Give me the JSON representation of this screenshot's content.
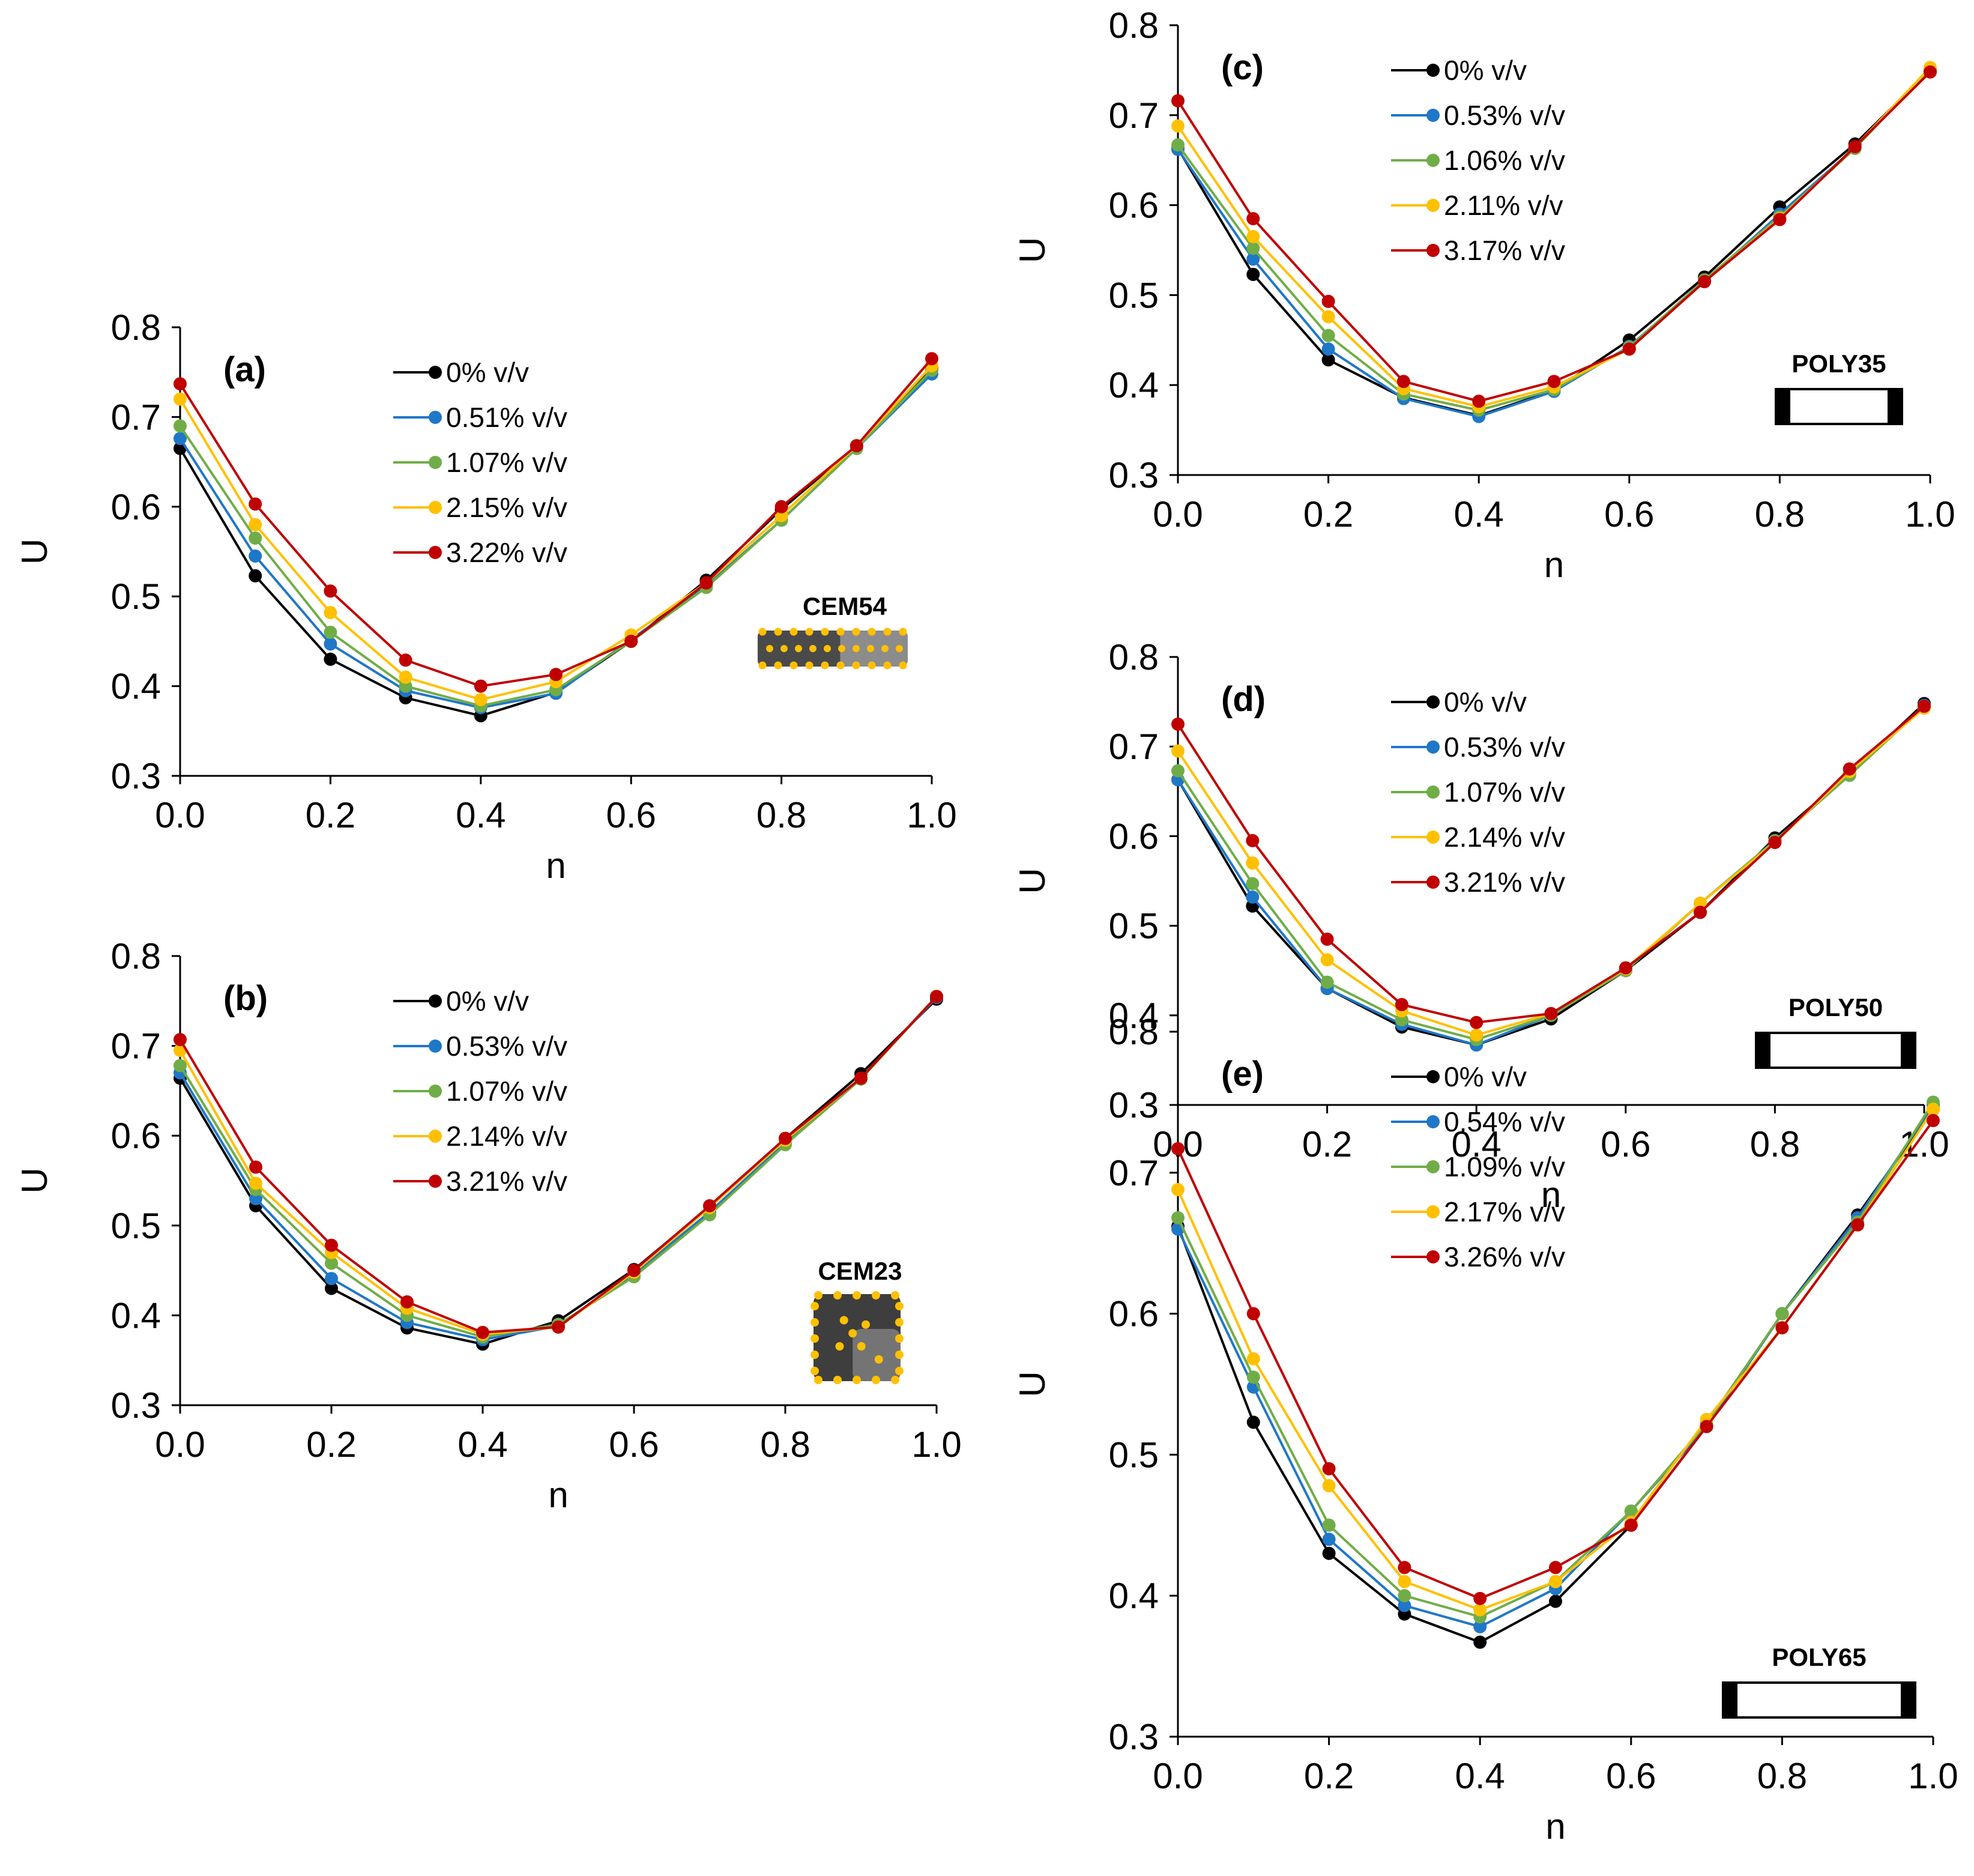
{
  "figure": {
    "colors": {
      "s0": "#000000",
      "s1": "#1F77C8",
      "s2": "#70AD47",
      "s3": "#FFC000",
      "s4": "#C00000",
      "particle": "#FFC000"
    }
  },
  "chart_data": [
    {
      "id": "a",
      "type": "line",
      "panel_tag": "(a)",
      "inset_label": "CEM54",
      "inset_icon": "cement-prism-icon",
      "xlabel": "n",
      "ylabel": "U",
      "xlim": [
        0,
        1
      ],
      "ylim": [
        0.3,
        0.8
      ],
      "xticks": [
        "0.0",
        "0.2",
        "0.4",
        "0.6",
        "0.8",
        "1.0"
      ],
      "yticks": [
        "0.3",
        "0.4",
        "0.5",
        "0.6",
        "0.7",
        "0.8"
      ],
      "series": [
        {
          "name": "0% v/v",
          "color": "#000000",
          "x": [
            0,
            0.1,
            0.2,
            0.3,
            0.4,
            0.5,
            0.6,
            0.7,
            0.8,
            0.9,
            1.0
          ],
          "y": [
            0.665,
            0.523,
            0.43,
            0.387,
            0.367,
            0.393,
            0.45,
            0.518,
            0.597,
            0.668,
            0.755
          ]
        },
        {
          "name": "0.51% v/v",
          "color": "#1F77C8",
          "x": [
            0,
            0.1,
            0.2,
            0.3,
            0.4,
            0.5,
            0.6,
            0.7,
            0.8,
            0.9,
            1.0
          ],
          "y": [
            0.676,
            0.545,
            0.447,
            0.395,
            0.376,
            0.392,
            0.452,
            0.512,
            0.585,
            0.665,
            0.748
          ]
        },
        {
          "name": "1.07% v/v",
          "color": "#70AD47",
          "x": [
            0,
            0.1,
            0.2,
            0.3,
            0.4,
            0.5,
            0.6,
            0.7,
            0.8,
            0.9,
            1.0
          ],
          "y": [
            0.69,
            0.565,
            0.46,
            0.4,
            0.378,
            0.396,
            0.45,
            0.51,
            0.585,
            0.665,
            0.752
          ]
        },
        {
          "name": "2.15% v/v",
          "color": "#FFC000",
          "x": [
            0,
            0.1,
            0.2,
            0.3,
            0.4,
            0.5,
            0.6,
            0.7,
            0.8,
            0.9,
            1.0
          ],
          "y": [
            0.72,
            0.58,
            0.482,
            0.41,
            0.385,
            0.405,
            0.457,
            0.515,
            0.59,
            0.668,
            0.757
          ]
        },
        {
          "name": "3.22% v/v",
          "color": "#C00000",
          "x": [
            0,
            0.1,
            0.2,
            0.3,
            0.4,
            0.5,
            0.6,
            0.7,
            0.8,
            0.9,
            1.0
          ],
          "y": [
            0.737,
            0.603,
            0.506,
            0.429,
            0.4,
            0.413,
            0.45,
            0.515,
            0.6,
            0.668,
            0.765
          ]
        }
      ]
    },
    {
      "id": "b",
      "type": "line",
      "panel_tag": "(b)",
      "inset_label": "CEM23",
      "inset_icon": "cement-cube-icon",
      "xlabel": "n",
      "ylabel": "U",
      "xlim": [
        0,
        1
      ],
      "ylim": [
        0.3,
        0.8
      ],
      "xticks": [
        "0.0",
        "0.2",
        "0.4",
        "0.6",
        "0.8",
        "1.0"
      ],
      "yticks": [
        "0.3",
        "0.4",
        "0.5",
        "0.6",
        "0.7",
        "0.8"
      ],
      "series": [
        {
          "name": "0% v/v",
          "color": "#000000",
          "x": [
            0,
            0.1,
            0.2,
            0.3,
            0.4,
            0.5,
            0.6,
            0.7,
            0.8,
            0.9,
            1.0
          ],
          "y": [
            0.664,
            0.522,
            0.43,
            0.386,
            0.368,
            0.394,
            0.451,
            0.521,
            0.597,
            0.669,
            0.752
          ]
        },
        {
          "name": "0.53% v/v",
          "color": "#1F77C8",
          "x": [
            0,
            0.1,
            0.2,
            0.3,
            0.4,
            0.5,
            0.6,
            0.7,
            0.8,
            0.9,
            1.0
          ],
          "y": [
            0.67,
            0.53,
            0.441,
            0.392,
            0.373,
            0.388,
            0.446,
            0.515,
            0.592,
            0.664,
            0.754
          ]
        },
        {
          "name": "1.07% v/v",
          "color": "#70AD47",
          "x": [
            0,
            0.1,
            0.2,
            0.3,
            0.4,
            0.5,
            0.6,
            0.7,
            0.8,
            0.9,
            1.0
          ],
          "y": [
            0.678,
            0.54,
            0.458,
            0.4,
            0.376,
            0.39,
            0.443,
            0.512,
            0.59,
            0.663,
            0.755
          ]
        },
        {
          "name": "2.14% v/v",
          "color": "#FFC000",
          "x": [
            0,
            0.1,
            0.2,
            0.3,
            0.4,
            0.5,
            0.6,
            0.7,
            0.8,
            0.9,
            1.0
          ],
          "y": [
            0.695,
            0.547,
            0.47,
            0.408,
            0.379,
            0.387,
            0.448,
            0.52,
            0.595,
            0.664,
            0.755
          ]
        },
        {
          "name": "3.21% v/v",
          "color": "#C00000",
          "x": [
            0,
            0.1,
            0.2,
            0.3,
            0.4,
            0.5,
            0.6,
            0.7,
            0.8,
            0.9,
            1.0
          ],
          "y": [
            0.707,
            0.565,
            0.478,
            0.415,
            0.381,
            0.387,
            0.45,
            0.522,
            0.597,
            0.664,
            0.755
          ]
        }
      ]
    },
    {
      "id": "c",
      "type": "line",
      "panel_tag": "(c)",
      "inset_label": "POLY35",
      "inset_icon": "polymer-tube-icon",
      "xlabel": "n",
      "ylabel": "U",
      "xlim": [
        0,
        1
      ],
      "ylim": [
        0.3,
        0.8
      ],
      "xticks": [
        "0.0",
        "0.2",
        "0.4",
        "0.6",
        "0.8",
        "1.0"
      ],
      "yticks": [
        "0.3",
        "0.4",
        "0.5",
        "0.6",
        "0.7",
        "0.8"
      ],
      "series": [
        {
          "name": "0% v/v",
          "color": "#000000",
          "x": [
            0,
            0.1,
            0.2,
            0.3,
            0.4,
            0.5,
            0.6,
            0.7,
            0.8,
            0.9,
            1.0
          ],
          "y": [
            0.663,
            0.523,
            0.428,
            0.386,
            0.366,
            0.394,
            0.45,
            0.52,
            0.598,
            0.668,
            0.75
          ]
        },
        {
          "name": "0.53% v/v",
          "color": "#1F77C8",
          "x": [
            0,
            0.1,
            0.2,
            0.3,
            0.4,
            0.5,
            0.6,
            0.7,
            0.8,
            0.9,
            1.0
          ],
          "y": [
            0.662,
            0.54,
            0.44,
            0.385,
            0.365,
            0.393,
            0.443,
            0.515,
            0.59,
            0.664,
            0.75
          ]
        },
        {
          "name": "1.06% v/v",
          "color": "#70AD47",
          "x": [
            0,
            0.1,
            0.2,
            0.3,
            0.4,
            0.5,
            0.6,
            0.7,
            0.8,
            0.9,
            1.0
          ],
          "y": [
            0.667,
            0.552,
            0.455,
            0.39,
            0.372,
            0.395,
            0.442,
            0.517,
            0.587,
            0.663,
            0.752
          ]
        },
        {
          "name": "2.11% v/v",
          "color": "#FFC000",
          "x": [
            0,
            0.1,
            0.2,
            0.3,
            0.4,
            0.5,
            0.6,
            0.7,
            0.8,
            0.9,
            1.0
          ],
          "y": [
            0.688,
            0.565,
            0.476,
            0.396,
            0.376,
            0.398,
            0.44,
            0.515,
            0.585,
            0.665,
            0.753
          ]
        },
        {
          "name": "3.17% v/v",
          "color": "#C00000",
          "x": [
            0,
            0.1,
            0.2,
            0.3,
            0.4,
            0.5,
            0.6,
            0.7,
            0.8,
            0.9,
            1.0
          ],
          "y": [
            0.716,
            0.585,
            0.493,
            0.404,
            0.382,
            0.404,
            0.44,
            0.515,
            0.584,
            0.665,
            0.748
          ]
        }
      ]
    },
    {
      "id": "d",
      "type": "line",
      "panel_tag": "(d)",
      "inset_label": "POLY50",
      "inset_icon": "polymer-tube-icon",
      "xlabel": "n",
      "ylabel": "U",
      "xlim": [
        0,
        1
      ],
      "ylim": [
        0.3,
        0.8
      ],
      "xticks": [
        "0.0",
        "0.2",
        "0.4",
        "0.6",
        "0.8",
        "1.0"
      ],
      "yticks": [
        "0.3",
        "0.4",
        "0.5",
        "0.6",
        "0.7",
        "0.8"
      ],
      "series": [
        {
          "name": "0% v/v",
          "color": "#000000",
          "x": [
            0,
            0.1,
            0.2,
            0.3,
            0.4,
            0.5,
            0.6,
            0.7,
            0.8,
            0.9,
            1.0
          ],
          "y": [
            0.663,
            0.522,
            0.43,
            0.387,
            0.367,
            0.396,
            0.45,
            0.515,
            0.598,
            0.67,
            0.748
          ]
        },
        {
          "name": "0.53% v/v",
          "color": "#1F77C8",
          "x": [
            0,
            0.1,
            0.2,
            0.3,
            0.4,
            0.5,
            0.6,
            0.7,
            0.8,
            0.9,
            1.0
          ],
          "y": [
            0.663,
            0.532,
            0.43,
            0.39,
            0.367,
            0.4,
            0.45,
            0.525,
            0.595,
            0.668,
            0.746
          ]
        },
        {
          "name": "1.07% v/v",
          "color": "#70AD47",
          "x": [
            0,
            0.1,
            0.2,
            0.3,
            0.4,
            0.5,
            0.6,
            0.7,
            0.8,
            0.9,
            1.0
          ],
          "y": [
            0.673,
            0.547,
            0.437,
            0.395,
            0.373,
            0.4,
            0.45,
            0.525,
            0.595,
            0.668,
            0.745
          ]
        },
        {
          "name": "2.14% v/v",
          "color": "#FFC000",
          "x": [
            0,
            0.1,
            0.2,
            0.3,
            0.4,
            0.5,
            0.6,
            0.7,
            0.8,
            0.9,
            1.0
          ],
          "y": [
            0.695,
            0.57,
            0.462,
            0.405,
            0.378,
            0.402,
            0.452,
            0.525,
            0.593,
            0.672,
            0.743
          ]
        },
        {
          "name": "3.21% v/v",
          "color": "#C00000",
          "x": [
            0,
            0.1,
            0.2,
            0.3,
            0.4,
            0.5,
            0.6,
            0.7,
            0.8,
            0.9,
            1.0
          ],
          "y": [
            0.725,
            0.595,
            0.485,
            0.412,
            0.392,
            0.402,
            0.453,
            0.515,
            0.593,
            0.675,
            0.745
          ]
        }
      ]
    },
    {
      "id": "e",
      "type": "line",
      "panel_tag": "(e)",
      "inset_label": "POLY65",
      "inset_icon": "polymer-tube-icon",
      "xlabel": "n",
      "ylabel": "U",
      "xlim": [
        0,
        1
      ],
      "ylim": [
        0.3,
        0.8
      ],
      "xticks": [
        "0.0",
        "0.2",
        "0.4",
        "0.6",
        "0.8",
        "1.0"
      ],
      "yticks": [
        "0.3",
        "0.4",
        "0.5",
        "0.6",
        "0.7",
        "0.8"
      ],
      "series": [
        {
          "name": "0% v/v",
          "color": "#000000",
          "x": [
            0,
            0.1,
            0.2,
            0.3,
            0.4,
            0.5,
            0.6,
            0.7,
            0.8,
            0.9,
            1.0
          ],
          "y": [
            0.662,
            0.523,
            0.43,
            0.387,
            0.367,
            0.396,
            0.45,
            0.52,
            0.6,
            0.67,
            0.745
          ]
        },
        {
          "name": "0.54% v/v",
          "color": "#1F77C8",
          "x": [
            0,
            0.1,
            0.2,
            0.3,
            0.4,
            0.5,
            0.6,
            0.7,
            0.8,
            0.9,
            1.0
          ],
          "y": [
            0.66,
            0.548,
            0.44,
            0.393,
            0.378,
            0.405,
            0.46,
            0.52,
            0.6,
            0.668,
            0.748
          ]
        },
        {
          "name": "1.09% v/v",
          "color": "#70AD47",
          "x": [
            0,
            0.1,
            0.2,
            0.3,
            0.4,
            0.5,
            0.6,
            0.7,
            0.8,
            0.9,
            1.0
          ],
          "y": [
            0.668,
            0.555,
            0.45,
            0.4,
            0.385,
            0.41,
            0.46,
            0.522,
            0.6,
            0.665,
            0.75
          ]
        },
        {
          "name": "2.17% v/v",
          "color": "#FFC000",
          "x": [
            0,
            0.1,
            0.2,
            0.3,
            0.4,
            0.5,
            0.6,
            0.7,
            0.8,
            0.9,
            1.0
          ],
          "y": [
            0.688,
            0.568,
            0.478,
            0.41,
            0.39,
            0.41,
            0.452,
            0.525,
            0.59,
            0.663,
            0.745
          ]
        },
        {
          "name": "3.26% v/v",
          "color": "#C00000",
          "x": [
            0,
            0.1,
            0.2,
            0.3,
            0.4,
            0.5,
            0.6,
            0.7,
            0.8,
            0.9,
            1.0
          ],
          "y": [
            0.717,
            0.6,
            0.49,
            0.42,
            0.398,
            0.42,
            0.45,
            0.52,
            0.59,
            0.663,
            0.737
          ]
        }
      ]
    }
  ]
}
